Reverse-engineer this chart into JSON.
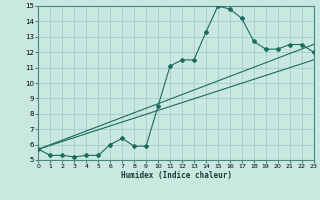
{
  "xlabel": "Humidex (Indice chaleur)",
  "background_color": "#c8e8e0",
  "grid_color": "#a0c8c8",
  "line_color": "#1a6b60",
  "xlim": [
    0,
    23
  ],
  "ylim": [
    5,
    15
  ],
  "xticks": [
    0,
    1,
    2,
    3,
    4,
    5,
    6,
    7,
    8,
    9,
    10,
    11,
    12,
    13,
    14,
    15,
    16,
    17,
    18,
    19,
    20,
    21,
    22,
    23
  ],
  "yticks": [
    5,
    6,
    7,
    8,
    9,
    10,
    11,
    12,
    13,
    14,
    15
  ],
  "line1_x": [
    0,
    1,
    2,
    3,
    4,
    5,
    6,
    7,
    8,
    9,
    10,
    11,
    12,
    13,
    14,
    15,
    16,
    17,
    18,
    19,
    20,
    21,
    22,
    23
  ],
  "line1_y": [
    5.7,
    5.3,
    5.3,
    5.2,
    5.3,
    5.3,
    6.0,
    6.4,
    5.9,
    5.9,
    8.5,
    11.1,
    11.5,
    11.5,
    13.3,
    15.0,
    14.8,
    14.2,
    12.7,
    12.2,
    12.2,
    12.5,
    12.5,
    12.0
  ],
  "line2_x": [
    0,
    23
  ],
  "line2_y": [
    5.7,
    12.5
  ],
  "line3_x": [
    0,
    23
  ],
  "line3_y": [
    5.7,
    11.5
  ]
}
